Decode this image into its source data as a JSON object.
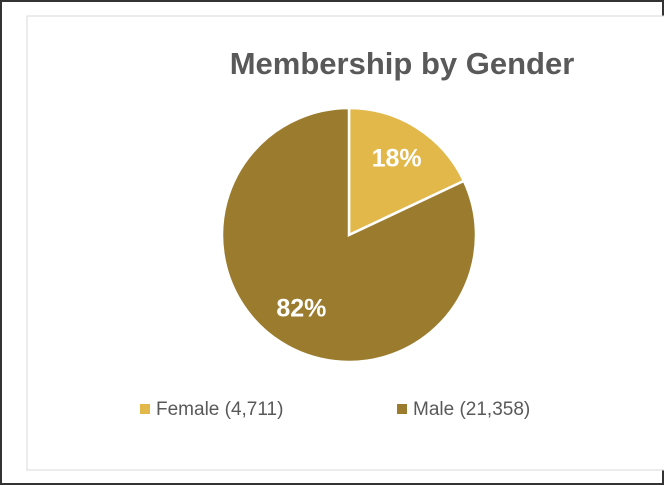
{
  "chart_data": {
    "type": "pie",
    "title": "Membership by Gender",
    "categories": [
      "Female (4,711)",
      "Male (21,358)"
    ],
    "values": [
      18,
      82
    ],
    "value_labels": [
      "18%",
      "82%"
    ],
    "colors": [
      "#e2b84b",
      "#9b7c2f"
    ],
    "legend": "bottom"
  }
}
